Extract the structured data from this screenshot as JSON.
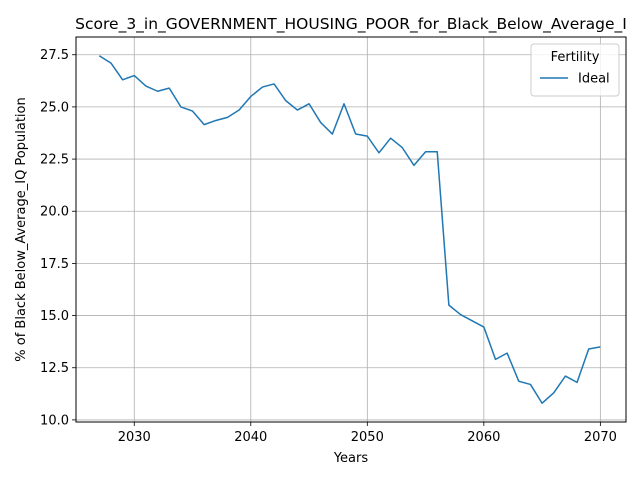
{
  "chart_data": {
    "type": "line",
    "title": "Score_3_in_GOVERNMENT_HOUSING_POOR_for_Black_Below_Average_I",
    "xlabel": "Years",
    "ylabel": "% of Black Below_Average_IQ Population",
    "xlim": [
      2025.0,
      2072.2
    ],
    "ylim": [
      9.9,
      28.35
    ],
    "x_ticks": [
      2030,
      2040,
      2050,
      2060,
      2070
    ],
    "x_tick_labels": [
      "2030",
      "2040",
      "2050",
      "2060",
      "2070"
    ],
    "y_ticks": [
      10.0,
      12.5,
      15.0,
      17.5,
      20.0,
      22.5,
      25.0,
      27.5
    ],
    "y_tick_labels": [
      "10.0",
      "12.5",
      "15.0",
      "17.5",
      "20.0",
      "22.5",
      "25.0",
      "27.5"
    ],
    "grid": true,
    "legend": {
      "title": "Fertility",
      "position": "top-right"
    },
    "series": [
      {
        "name": "Ideal",
        "color": "#1f77b4",
        "x": [
          2027,
          2028,
          2029,
          2030,
          2031,
          2032,
          2033,
          2034,
          2035,
          2036,
          2037,
          2038,
          2039,
          2040,
          2041,
          2042,
          2043,
          2044,
          2045,
          2046,
          2047,
          2048,
          2049,
          2050,
          2051,
          2052,
          2053,
          2054,
          2055,
          2056,
          2057,
          2058,
          2059,
          2060,
          2061,
          2062,
          2063,
          2064,
          2065,
          2066,
          2067,
          2068,
          2069,
          2070
        ],
        "y": [
          27.45,
          27.1,
          26.3,
          26.5,
          26.0,
          25.75,
          25.9,
          25.0,
          24.8,
          24.15,
          24.35,
          24.5,
          24.85,
          25.5,
          25.95,
          26.1,
          25.3,
          24.85,
          25.15,
          24.25,
          23.7,
          25.15,
          23.7,
          23.6,
          22.8,
          23.5,
          23.05,
          22.2,
          22.85,
          22.85,
          15.5,
          15.05,
          14.75,
          14.45,
          12.9,
          13.2,
          11.85,
          11.7,
          10.8,
          11.3,
          12.1,
          11.8,
          13.4,
          13.5
        ]
      }
    ]
  }
}
